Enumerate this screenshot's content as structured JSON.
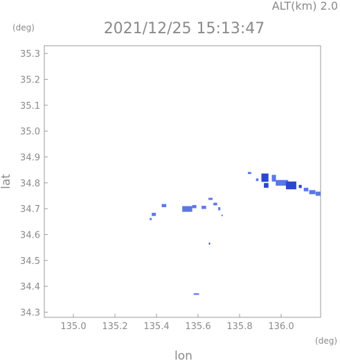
{
  "header": {
    "altitude_text": "ALT(km) 2.0",
    "timestamp": "2021/12/25 15:13:47"
  },
  "chart_data": {
    "type": "heatmap",
    "title": "2021/12/25 15:13:47",
    "subtitle": "ALT(km) 2.0",
    "xlabel": "lon",
    "ylabel": "lat",
    "x_unit": "(deg)",
    "y_unit": "(deg)",
    "xlim": [
      134.86,
      136.19
    ],
    "ylim": [
      34.28,
      35.33
    ],
    "x_ticks": [
      135.0,
      135.2,
      135.4,
      135.6,
      135.8,
      136.0
    ],
    "y_ticks": [
      34.3,
      34.4,
      34.5,
      34.6,
      34.7,
      34.8,
      34.9,
      35.0,
      35.1,
      35.2,
      35.3
    ],
    "x_tick_labels": [
      "135.0",
      "135.2",
      "135.4",
      "135.6",
      "135.8",
      "136.0"
    ],
    "y_tick_labels": [
      "34.3",
      "34.4",
      "34.5",
      "34.6",
      "34.7",
      "34.8",
      "34.9",
      "35.0",
      "35.1",
      "35.2",
      "35.3"
    ],
    "grid": false,
    "color_light": "#5a78e6",
    "color_dark": "#2b47cc",
    "echoes": [
      {
        "lon": 135.372,
        "lat": 34.66,
        "w": 0.01,
        "h": 0.008,
        "shade": "light"
      },
      {
        "lon": 135.387,
        "lat": 34.678,
        "w": 0.02,
        "h": 0.012,
        "shade": "light"
      },
      {
        "lon": 135.436,
        "lat": 34.712,
        "w": 0.022,
        "h": 0.012,
        "shade": "light"
      },
      {
        "lon": 135.548,
        "lat": 34.699,
        "w": 0.048,
        "h": 0.022,
        "shade": "light"
      },
      {
        "lon": 135.582,
        "lat": 34.708,
        "w": 0.02,
        "h": 0.012,
        "shade": "light"
      },
      {
        "lon": 135.628,
        "lat": 34.705,
        "w": 0.022,
        "h": 0.012,
        "shade": "light"
      },
      {
        "lon": 135.66,
        "lat": 34.738,
        "w": 0.02,
        "h": 0.008,
        "shade": "light"
      },
      {
        "lon": 135.683,
        "lat": 34.718,
        "w": 0.018,
        "h": 0.01,
        "shade": "light"
      },
      {
        "lon": 135.702,
        "lat": 34.7,
        "w": 0.01,
        "h": 0.012,
        "shade": "light"
      },
      {
        "lon": 135.716,
        "lat": 34.674,
        "w": 0.006,
        "h": 0.006,
        "shade": "light"
      },
      {
        "lon": 135.655,
        "lat": 34.565,
        "w": 0.006,
        "h": 0.008,
        "shade": "dark"
      },
      {
        "lon": 135.592,
        "lat": 34.37,
        "w": 0.026,
        "h": 0.006,
        "shade": "light"
      },
      {
        "lon": 135.848,
        "lat": 34.838,
        "w": 0.016,
        "h": 0.008,
        "shade": "light"
      },
      {
        "lon": 135.885,
        "lat": 34.812,
        "w": 0.012,
        "h": 0.01,
        "shade": "light"
      },
      {
        "lon": 135.922,
        "lat": 34.82,
        "w": 0.034,
        "h": 0.032,
        "shade": "dark"
      },
      {
        "lon": 135.928,
        "lat": 34.79,
        "w": 0.022,
        "h": 0.018,
        "shade": "dark"
      },
      {
        "lon": 135.965,
        "lat": 34.818,
        "w": 0.02,
        "h": 0.026,
        "shade": "light"
      },
      {
        "lon": 136.004,
        "lat": 34.8,
        "w": 0.06,
        "h": 0.022,
        "shade": "light"
      },
      {
        "lon": 136.048,
        "lat": 34.79,
        "w": 0.05,
        "h": 0.03,
        "shade": "dark"
      },
      {
        "lon": 136.092,
        "lat": 34.786,
        "w": 0.014,
        "h": 0.012,
        "shade": "dark"
      },
      {
        "lon": 136.12,
        "lat": 34.774,
        "w": 0.022,
        "h": 0.014,
        "shade": "light"
      },
      {
        "lon": 136.15,
        "lat": 34.764,
        "w": 0.03,
        "h": 0.016,
        "shade": "light"
      },
      {
        "lon": 136.178,
        "lat": 34.758,
        "w": 0.024,
        "h": 0.016,
        "shade": "light"
      }
    ]
  }
}
